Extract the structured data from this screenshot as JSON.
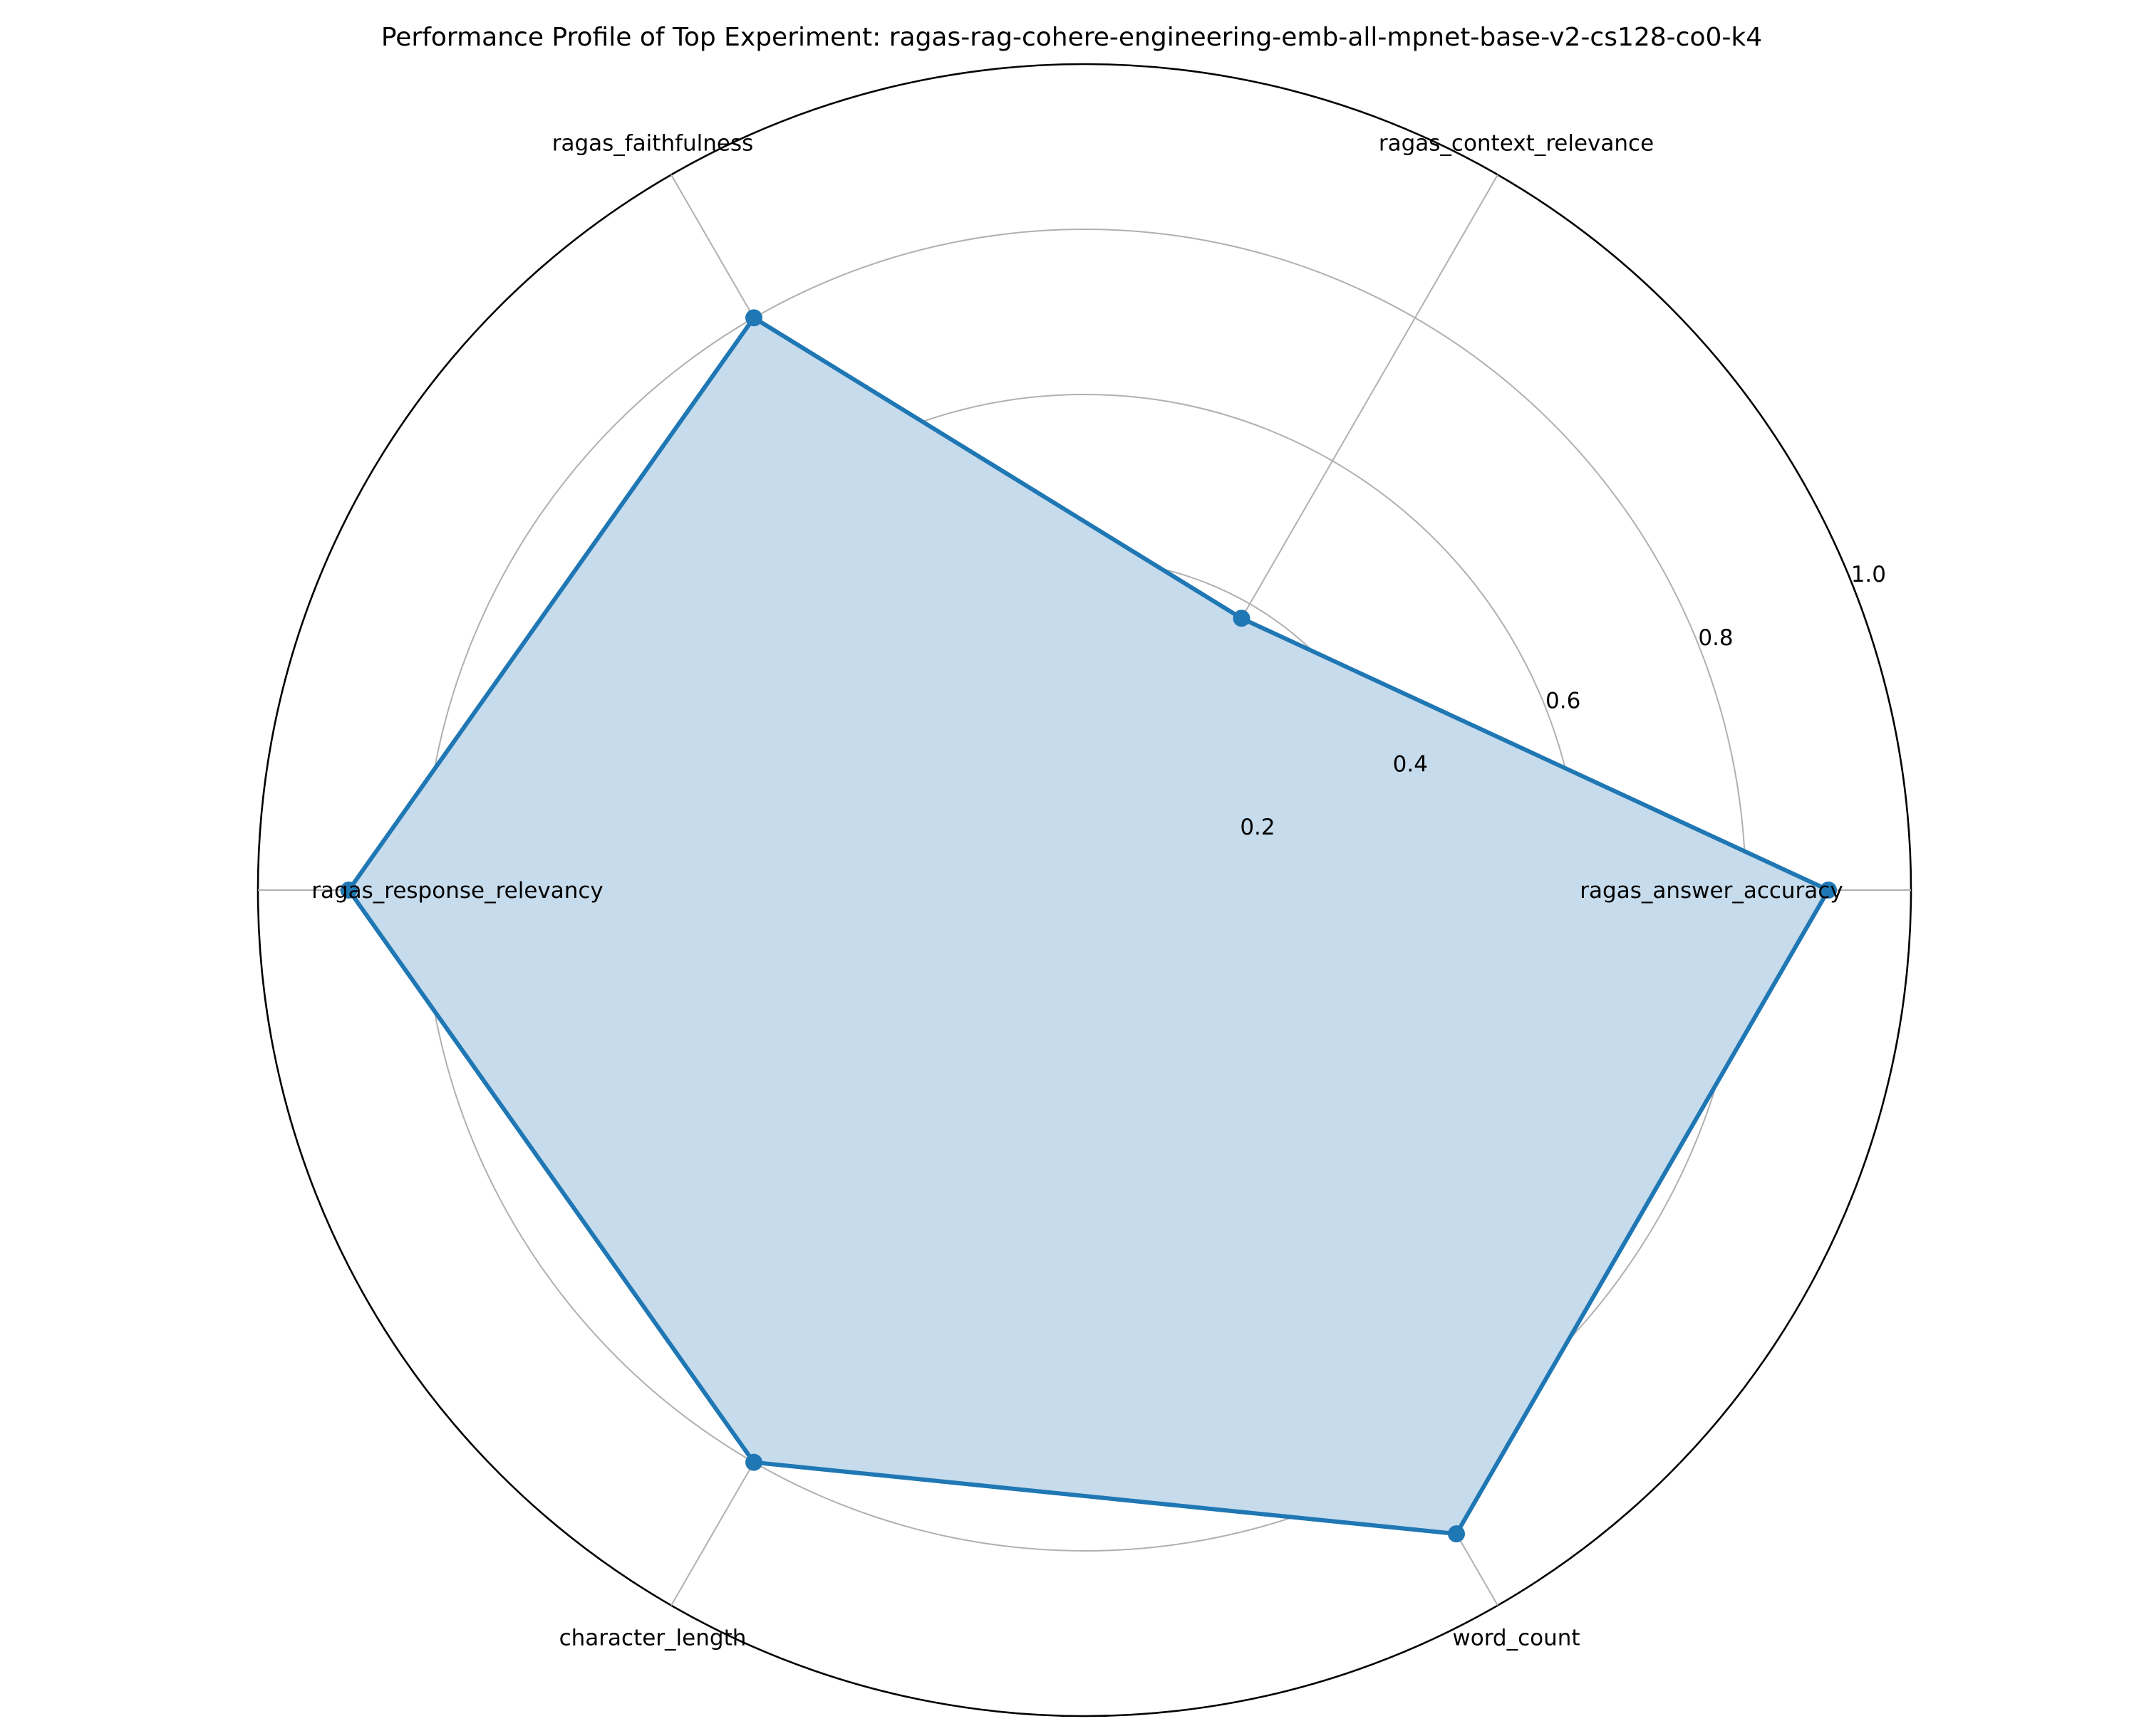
{
  "chart_data": {
    "type": "radar",
    "title": "Performance Profile of Top Experiment: ragas-rag-cohere-engineering-emb-all-mpnet-base-v2-cs128-co0-k4",
    "categories": [
      "ragas_answer_accuracy",
      "ragas_context_relevance",
      "ragas_faithfulness",
      "ragas_response_relevancy",
      "character_length",
      "word_count"
    ],
    "series": [
      {
        "values": [
          0.9,
          0.38,
          0.8,
          0.89,
          0.8,
          0.9
        ]
      }
    ],
    "rlim": [
      0,
      1.0
    ],
    "radial_ticks": [
      0.2,
      0.4,
      0.6,
      0.8,
      1.0
    ],
    "radial_tick_labels": [
      "0.2",
      "0.4",
      "0.6",
      "0.8",
      "1.0"
    ],
    "grid": true,
    "legend": "none",
    "colors": {
      "line": "#1f77b4",
      "fill": "#c6dbec",
      "grid": "#b0b0b0",
      "spine": "#000000"
    }
  }
}
